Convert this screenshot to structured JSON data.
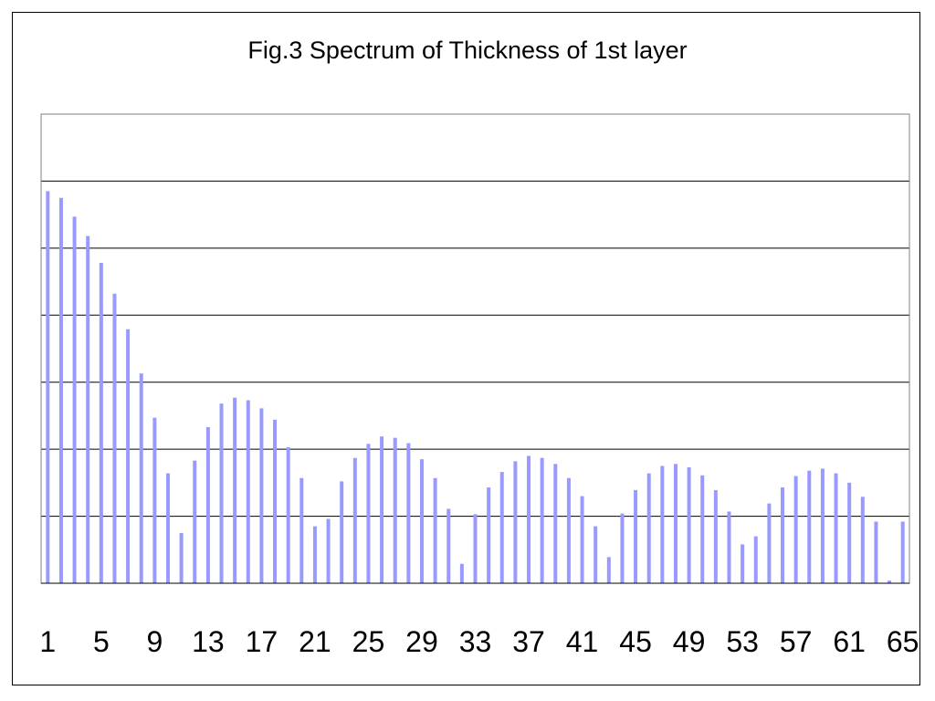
{
  "chart_data": {
    "type": "bar",
    "title": "Fig.3 Spectrum of Thickness of 1st layer",
    "xlabel": "",
    "ylabel": "",
    "categories": [
      1,
      2,
      3,
      4,
      5,
      6,
      7,
      8,
      9,
      10,
      11,
      12,
      13,
      14,
      15,
      16,
      17,
      18,
      19,
      20,
      21,
      22,
      23,
      24,
      25,
      26,
      27,
      28,
      29,
      30,
      31,
      32,
      33,
      34,
      35,
      36,
      37,
      38,
      39,
      40,
      41,
      42,
      43,
      44,
      45,
      46,
      47,
      48,
      49,
      50,
      51,
      52,
      53,
      54,
      55,
      56,
      57,
      58,
      59,
      60,
      61,
      62,
      63,
      64,
      65
    ],
    "tick_labels": [
      "1",
      "5",
      "9",
      "13",
      "17",
      "21",
      "25",
      "29",
      "33",
      "37",
      "41",
      "45",
      "49",
      "53",
      "57",
      "61",
      "65"
    ],
    "values": [
      5.85,
      5.75,
      5.47,
      5.18,
      4.78,
      4.32,
      3.79,
      3.13,
      2.47,
      1.64,
      0.75,
      1.83,
      2.33,
      2.68,
      2.77,
      2.73,
      2.61,
      2.44,
      2.03,
      1.57,
      0.85,
      0.96,
      1.52,
      1.87,
      2.08,
      2.19,
      2.17,
      2.09,
      1.85,
      1.57,
      1.11,
      0.29,
      1.03,
      1.43,
      1.66,
      1.82,
      1.9,
      1.87,
      1.78,
      1.57,
      1.3,
      0.85,
      0.39,
      1.04,
      1.39,
      1.64,
      1.75,
      1.78,
      1.73,
      1.61,
      1.39,
      1.07,
      0.58,
      0.7,
      1.19,
      1.43,
      1.6,
      1.68,
      1.71,
      1.64,
      1.5,
      1.29,
      0.92,
      0.04,
      0.92
    ],
    "ylim": [
      0,
      7
    ],
    "grid": true,
    "legend": "none",
    "bar_color": "#9999ff"
  }
}
